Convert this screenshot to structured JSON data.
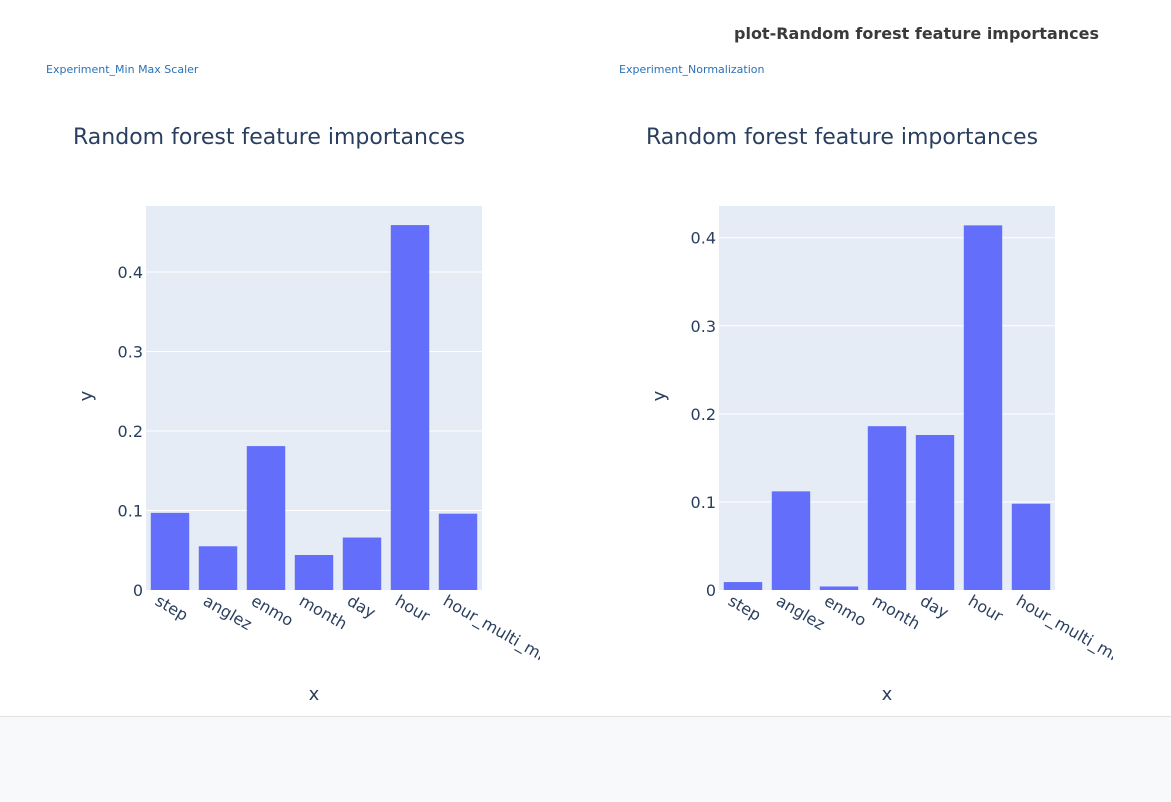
{
  "page": {
    "title": "plot-Random forest feature importances"
  },
  "experiments": [
    {
      "link_label": "Experiment_Min Max Scaler"
    },
    {
      "link_label": "Experiment_Normalization"
    }
  ],
  "colors": {
    "bar": "#636efa",
    "plot_bg": "#e5ecf6",
    "grid": "#ffffff",
    "text": "#2a3f5f",
    "link": "#2a72b5"
  },
  "chart_data": [
    {
      "type": "bar",
      "title": "Random forest feature importances",
      "xlabel": "x",
      "ylabel": "y",
      "categories": [
        "step",
        "anglez",
        "enmo",
        "month",
        "day",
        "hour",
        "hour_multi_min"
      ],
      "values": [
        0.097,
        0.055,
        0.181,
        0.044,
        0.066,
        0.459,
        0.096
      ],
      "ylim": [
        0,
        0.483
      ],
      "yticks": [
        0,
        0.1,
        0.2,
        0.3,
        0.4
      ],
      "ytick_labels": [
        "0",
        "0.1",
        "0.2",
        "0.3",
        "0.4"
      ],
      "grid": true,
      "legend": "none"
    },
    {
      "type": "bar",
      "title": "Random forest feature importances",
      "xlabel": "x",
      "ylabel": "y",
      "categories": [
        "step",
        "anglez",
        "enmo",
        "month",
        "day",
        "hour",
        "hour_multi_min"
      ],
      "values": [
        0.009,
        0.112,
        0.004,
        0.186,
        0.176,
        0.414,
        0.098
      ],
      "ylim": [
        0,
        0.436
      ],
      "yticks": [
        0,
        0.1,
        0.2,
        0.3,
        0.4
      ],
      "ytick_labels": [
        "0",
        "0.1",
        "0.2",
        "0.3",
        "0.4"
      ],
      "grid": true,
      "legend": "none"
    }
  ]
}
